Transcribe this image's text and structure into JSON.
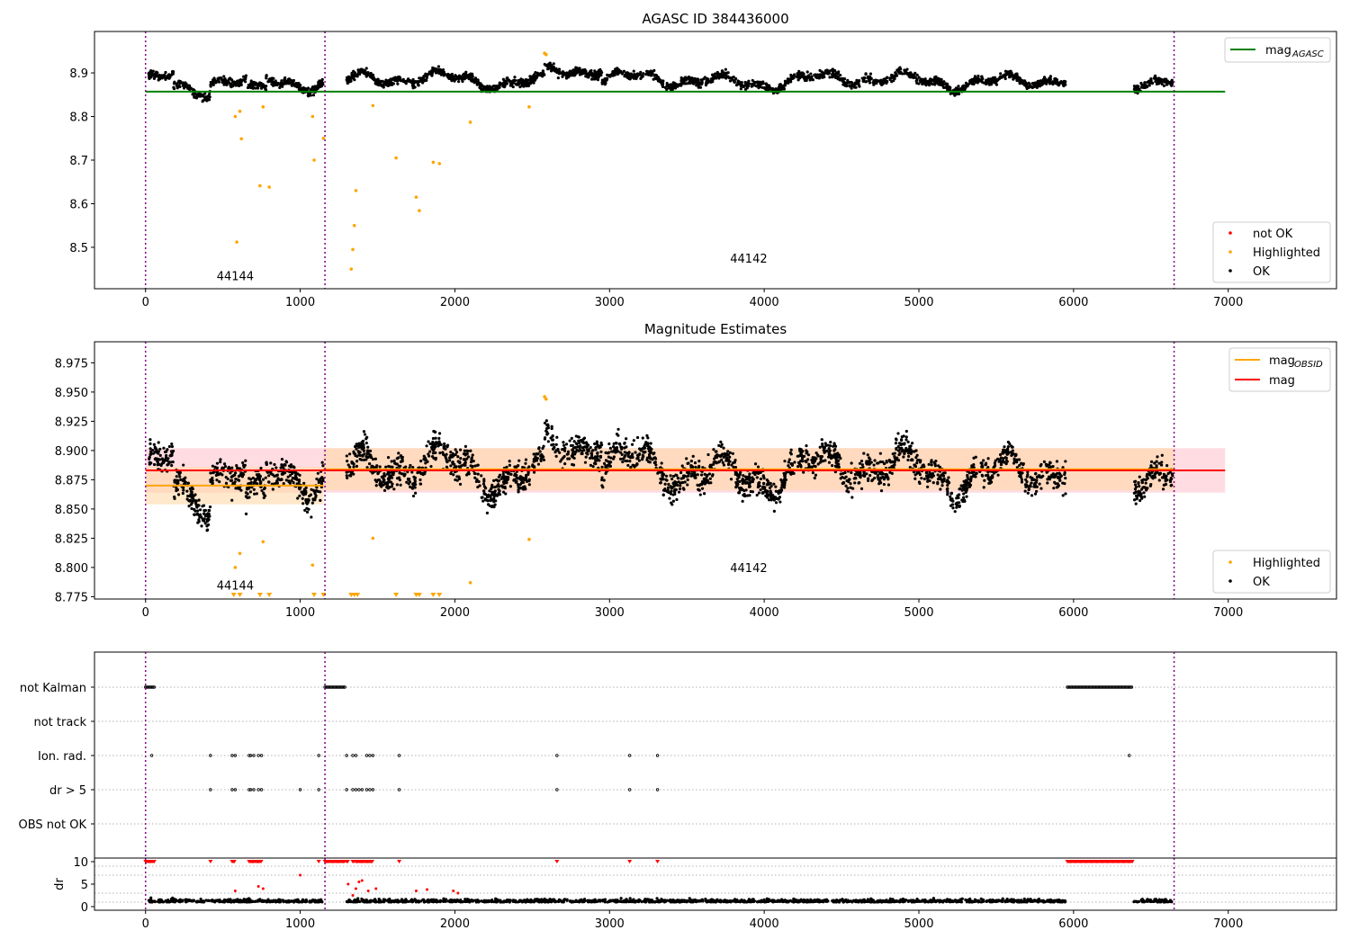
{
  "chart_data": [
    {
      "type": "scatter",
      "title": "AGASC ID 384436000",
      "xlim": [
        -330,
        7700
      ],
      "ylim": [
        8.405,
        8.995
      ],
      "xticks": [
        0,
        1000,
        2000,
        3000,
        4000,
        5000,
        6000,
        7000
      ],
      "yticks": [
        8.5,
        8.6,
        8.7,
        8.8,
        8.9
      ],
      "ytick_labels": [
        "8.5",
        "8.6",
        "8.7",
        "8.8",
        "8.9"
      ],
      "vlines": [
        0,
        1160,
        6650
      ],
      "annotations": [
        {
          "text": "44144",
          "x": 580,
          "y": 8.425
        },
        {
          "text": "44142",
          "x": 3900,
          "y": 8.465
        }
      ],
      "lines": [
        {
          "name": "mag_AGASC",
          "label": "mag",
          "sub": "AGASC",
          "x": [
            0,
            6980
          ],
          "y": [
            8.857,
            8.857
          ],
          "color": "#008000"
        }
      ],
      "highlighted": [
        [
          580,
          8.8
        ],
        [
          610,
          8.812
        ],
        [
          620,
          8.749
        ],
        [
          590,
          8.512
        ],
        [
          740,
          8.641
        ],
        [
          760,
          8.822
        ],
        [
          800,
          8.638
        ],
        [
          1080,
          8.8
        ],
        [
          1090,
          8.7
        ],
        [
          1150,
          8.75
        ],
        [
          1330,
          8.45
        ],
        [
          1340,
          8.495
        ],
        [
          1350,
          8.55
        ],
        [
          1360,
          8.63
        ],
        [
          1470,
          8.825
        ],
        [
          1620,
          8.705
        ],
        [
          1750,
          8.615
        ],
        [
          1770,
          8.584
        ],
        [
          1860,
          8.695
        ],
        [
          1900,
          8.692
        ],
        [
          2100,
          8.787
        ],
        [
          2480,
          8.822
        ],
        [
          2580,
          8.945
        ],
        [
          2590,
          8.942
        ]
      ],
      "legend": {
        "position": "lower-right",
        "entries": [
          {
            "label": "not OK",
            "color": "#ff0000"
          },
          {
            "label": "Highlighted",
            "color": "#ffa500"
          },
          {
            "label": "OK",
            "color": "#000000"
          }
        ]
      },
      "ok_series_description": "dense black points along the light curve"
    },
    {
      "type": "scatter",
      "title": "Magnitude Estimates",
      "xlim": [
        -330,
        7700
      ],
      "ylim": [
        8.773,
        8.993
      ],
      "xticks": [
        0,
        1000,
        2000,
        3000,
        4000,
        5000,
        6000,
        7000
      ],
      "yticks": [
        8.775,
        8.8,
        8.825,
        8.85,
        8.875,
        8.9,
        8.925,
        8.95,
        8.975
      ],
      "ytick_labels": [
        "8.775",
        "8.800",
        "8.825",
        "8.850",
        "8.875",
        "8.900",
        "8.925",
        "8.950",
        "8.975"
      ],
      "vlines": [
        0,
        1160,
        6650
      ],
      "annotations": [
        {
          "text": "44144",
          "x": 580,
          "y": 8.781
        },
        {
          "text": "44142",
          "x": 3900,
          "y": 8.796
        }
      ],
      "lines": [
        {
          "name": "mag_OBSID_1",
          "x": [
            0,
            1150
          ],
          "y": [
            8.87,
            8.87
          ],
          "color": "#ffa500"
        },
        {
          "name": "mag_OBSID_2",
          "x": [
            1150,
            6650
          ],
          "y": [
            8.884,
            8.884
          ],
          "color": "#ffa500"
        },
        {
          "name": "mag",
          "x": [
            0,
            6980
          ],
          "y": [
            8.883,
            8.883
          ],
          "color": "#ff0000"
        }
      ],
      "bands": [
        {
          "x": [
            0,
            6980
          ],
          "y": [
            8.864,
            8.902
          ],
          "color": "#ffc0cb"
        },
        {
          "x": [
            0,
            1150
          ],
          "y": [
            8.854,
            8.886
          ],
          "color": "#ffd9a8"
        },
        {
          "x": [
            1150,
            6650
          ],
          "y": [
            8.866,
            8.902
          ],
          "color": "#ffd9a8"
        }
      ],
      "highlighted": [
        [
          580,
          8.8
        ],
        [
          610,
          8.812
        ],
        [
          760,
          8.822
        ],
        [
          1080,
          8.802
        ],
        [
          1470,
          8.825
        ],
        [
          2100,
          8.787
        ],
        [
          2480,
          8.824
        ],
        [
          2580,
          8.946
        ],
        [
          2590,
          8.944
        ]
      ],
      "upper_limits_x": [
        570,
        610,
        740,
        800,
        1090,
        1150,
        1330,
        1350,
        1370,
        1620,
        1750,
        1770,
        1860,
        1900
      ],
      "legend": {
        "position": "lower-right",
        "entries": [
          {
            "label": "Highlighted",
            "color": "#ffa500"
          },
          {
            "label": "OK",
            "color": "#000000"
          }
        ]
      },
      "legend_top": {
        "position": "upper-right",
        "entries": [
          {
            "label": "mag",
            "sub": "OBSID",
            "color": "#ffa500"
          },
          {
            "label": "mag",
            "sub": "",
            "color": "#ff0000"
          }
        ]
      }
    },
    {
      "type": "scatter",
      "title": "",
      "xlim": [
        -330,
        7700
      ],
      "categories": [
        "not Kalman",
        "not track",
        "Ion. rad.",
        "dr > 5",
        "OBS not OK"
      ],
      "vlines": [
        0,
        1160,
        6650
      ],
      "flags": {
        "not Kalman": [
          [
            0,
            60
          ],
          [
            1160,
            1290
          ],
          [
            5960,
            6380
          ]
        ],
        "not track": [],
        "Ion. rad.": [
          40,
          420,
          560,
          580,
          670,
          680,
          700,
          730,
          750,
          1120,
          1300,
          1340,
          1360,
          1430,
          1450,
          1470,
          1640,
          2660,
          3130,
          3310,
          6360
        ],
        "dr > 5": [
          420,
          560,
          580,
          670,
          680,
          700,
          730,
          750,
          1000,
          1120,
          1300,
          1340,
          1360,
          1380,
          1400,
          1430,
          1450,
          1470,
          1640,
          2660,
          3130,
          3310
        ],
        "OBS not OK": []
      }
    },
    {
      "type": "scatter",
      "title": "",
      "xlim": [
        -330,
        7700
      ],
      "ylim": [
        -0.8,
        10.8
      ],
      "yticks": [
        0,
        5,
        10
      ],
      "ytick_labels": [
        "0",
        "5",
        "10"
      ],
      "xticks": [
        0,
        1000,
        2000,
        3000,
        4000,
        5000,
        6000,
        7000
      ],
      "ylabel": "dr",
      "vlines": [
        0,
        1160,
        6650
      ],
      "outliers": [
        [
          1000,
          7
        ],
        [
          580,
          3.5
        ],
        [
          730,
          4.5
        ],
        [
          760,
          4
        ],
        [
          1310,
          5
        ],
        [
          1340,
          2.5
        ],
        [
          1360,
          4
        ],
        [
          1380,
          5.5
        ],
        [
          1400,
          5.8
        ],
        [
          1440,
          3.5
        ],
        [
          1490,
          4
        ],
        [
          1750,
          3.5
        ],
        [
          1820,
          3.8
        ],
        [
          1990,
          3.5
        ],
        [
          2020,
          3
        ]
      ],
      "saturated_x": [
        [
          0,
          60
        ],
        [
          420,
          425
        ],
        [
          560,
          580
        ],
        [
          670,
          750
        ],
        [
          1120,
          1125
        ],
        [
          1160,
          1290
        ],
        [
          1300,
          1310
        ],
        [
          1340,
          1350
        ],
        [
          1360,
          1470
        ],
        [
          1640,
          1645
        ],
        [
          2660,
          2665
        ],
        [
          3130,
          3135
        ],
        [
          3310,
          3315
        ],
        [
          5960,
          6380
        ]
      ]
    }
  ]
}
